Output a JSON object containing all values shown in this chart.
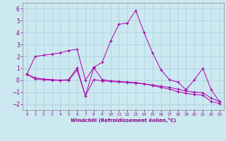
{
  "xlabel": "Windchill (Refroidissement éolien,°C)",
  "xlim": [
    -0.5,
    23.5
  ],
  "ylim": [
    -2.5,
    6.5
  ],
  "yticks": [
    -2,
    -1,
    0,
    1,
    2,
    3,
    4,
    5,
    6
  ],
  "xticks": [
    0,
    1,
    2,
    3,
    4,
    5,
    6,
    7,
    8,
    9,
    10,
    11,
    12,
    13,
    14,
    15,
    16,
    17,
    18,
    19,
    20,
    21,
    22,
    23
  ],
  "bg_color": "#cce8f0",
  "grid_color": "#aad0e0",
  "line_color": "#aa00aa",
  "series": [
    {
      "x": [
        0,
        1,
        2,
        3,
        4,
        5,
        6,
        7,
        8,
        9,
        10,
        11,
        12,
        13,
        14,
        15,
        16,
        17,
        18,
        19,
        20,
        21,
        22,
        23
      ],
      "y": [
        0.5,
        2.0,
        2.1,
        2.2,
        2.3,
        2.5,
        2.6,
        0.0,
        1.1,
        1.5,
        3.3,
        4.7,
        4.8,
        5.85,
        4.0,
        2.3,
        0.9,
        0.05,
        -0.15,
        -0.8,
        0.05,
        1.0,
        -0.8,
        -1.8
      ]
    },
    {
      "x": [
        0,
        1,
        2,
        3,
        4,
        5,
        6,
        7,
        8,
        9,
        10,
        11,
        12,
        13,
        14,
        15,
        16,
        17,
        18,
        19,
        20,
        21,
        22,
        23
      ],
      "y": [
        0.5,
        0.2,
        0.1,
        0.05,
        0.0,
        0.05,
        1.05,
        -1.3,
        0.05,
        -0.05,
        -0.1,
        -0.15,
        -0.2,
        -0.25,
        -0.3,
        -0.4,
        -0.5,
        -0.6,
        -0.75,
        -0.9,
        -1.0,
        -1.05,
        -1.5,
        -1.8
      ]
    },
    {
      "x": [
        0,
        1,
        2,
        3,
        4,
        5,
        6,
        7,
        8,
        9,
        10,
        11,
        12,
        13,
        14,
        15,
        16,
        17,
        18,
        19,
        20,
        21,
        22,
        23
      ],
      "y": [
        0.5,
        0.1,
        0.05,
        0.0,
        0.0,
        0.0,
        0.85,
        -1.3,
        1.05,
        0.05,
        -0.05,
        -0.1,
        -0.15,
        -0.2,
        -0.3,
        -0.45,
        -0.6,
        -0.75,
        -0.95,
        -1.1,
        -1.2,
        -1.25,
        -1.8,
        -1.95
      ]
    }
  ]
}
